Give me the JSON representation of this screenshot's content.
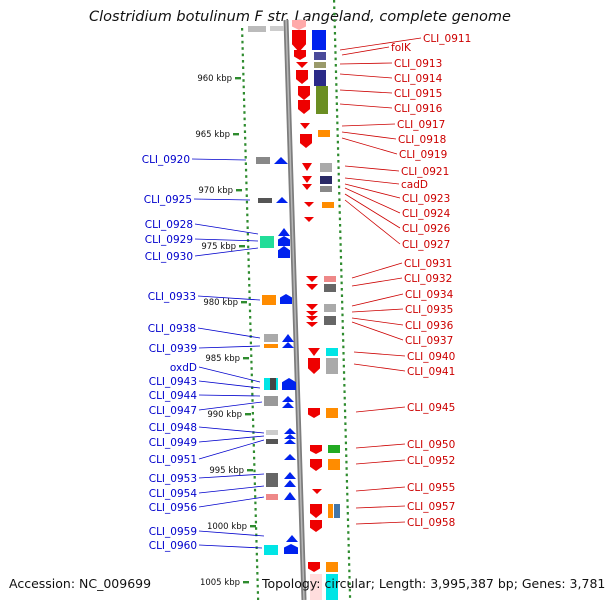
{
  "title": "Clostridium botulinum F str. Langeland, complete genome",
  "footer": {
    "accession": "Accession: NC_009699",
    "topology": "Topology: circular; Length: 3,995,387 bp; Genes: 3,781"
  },
  "colors": {
    "left_label": "#0000cc",
    "right_label": "#cc0000",
    "backbone": "#8a8a8a",
    "ruler": "#2e8b2e",
    "blue_gene": "#0022ee",
    "red_gene": "#ee0000"
  },
  "scale_labels": [
    "960 kbp",
    "965 kbp",
    "970 kbp",
    "975 kbp",
    "980 kbp",
    "985 kbp",
    "990 kbp",
    "995 kbp",
    "1000 kbp",
    "1005 kbp"
  ],
  "left_genes": [
    "CLI_0920",
    "CLI_0925",
    "CLI_0928",
    "CLI_0929",
    "CLI_0930",
    "CLI_0933",
    "CLI_0938",
    "CLI_0939",
    "oxdD",
    "CLI_0943",
    "CLI_0944",
    "CLI_0947",
    "CLI_0948",
    "CLI_0949",
    "CLI_0951",
    "CLI_0953",
    "CLI_0954",
    "CLI_0956",
    "CLI_0959",
    "CLI_0960"
  ],
  "right_genes": [
    "CLI_0911",
    "folK",
    "CLI_0913",
    "CLI_0914",
    "CLI_0915",
    "CLI_0916",
    "CLI_0917",
    "CLI_0918",
    "CLI_0919",
    "CLI_0921",
    "cadD",
    "CLI_0923",
    "CLI_0924",
    "CLI_0926",
    "CLI_0927",
    "CLI_0931",
    "CLI_0932",
    "CLI_0934",
    "CLI_0935",
    "CLI_0936",
    "CLI_0937",
    "CLI_0940",
    "CLI_0941",
    "CLI_0945",
    "CLI_0950",
    "CLI_0952",
    "CLI_0955",
    "CLI_0957",
    "CLI_0958"
  ]
}
